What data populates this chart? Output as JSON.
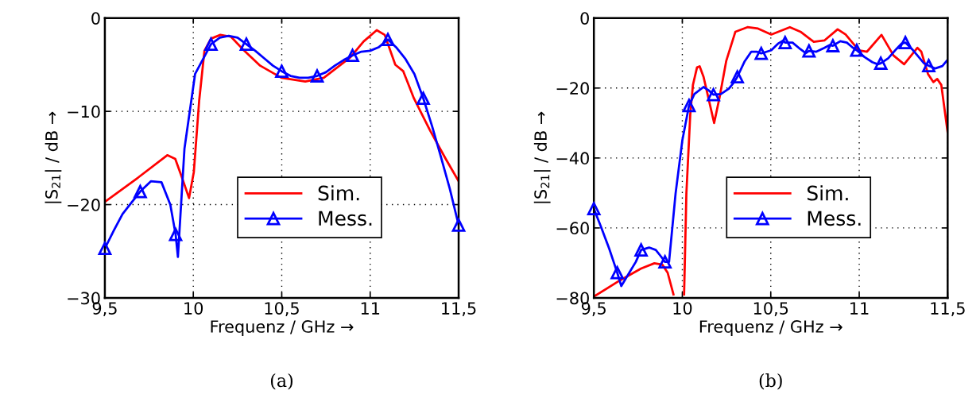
{
  "chart_data": [
    {
      "type": "line",
      "xlabel": "Frequenz / GHz →",
      "ylabel": "|S$_{21}$| / dB →",
      "annotations": [
        "(a)"
      ],
      "xlim": [
        9.5,
        11.5
      ],
      "ylim": [
        -30,
        0
      ],
      "xticks": [
        {
          "value": 9.5,
          "label": "9,5"
        },
        10,
        {
          "value": 10.5,
          "label": "10,5"
        },
        11,
        {
          "value": 11.5,
          "label": "11,5"
        }
      ],
      "yticks": [
        {
          "value": -30,
          "label": "−30"
        },
        {
          "value": -20,
          "label": "−20"
        },
        {
          "value": -10,
          "label": "−10"
        },
        0
      ],
      "grid": true,
      "legend": "bottom right",
      "line_style": "solid",
      "series": [
        {
          "name": "Sim.",
          "color": "#ff0000",
          "marker": "none",
          "x": [
            9.5,
            9.688,
            9.853,
            9.898,
            9.936,
            9.976,
            10.003,
            10.033,
            10.063,
            10.1,
            10.153,
            10.213,
            10.288,
            10.378,
            10.498,
            10.633,
            10.738,
            10.888,
            10.963,
            11.037,
            11.082,
            11.142,
            11.187,
            11.247,
            11.337,
            11.427,
            11.5
          ],
          "values": [
            -19.7,
            -17.1,
            -14.7,
            -15.1,
            -17.1,
            -19.3,
            -16.5,
            -8.9,
            -3.5,
            -2.2,
            -1.8,
            -2.0,
            -3.5,
            -5.1,
            -6.4,
            -6.8,
            -6.4,
            -4.2,
            -2.5,
            -1.3,
            -1.8,
            -5.0,
            -5.7,
            -8.6,
            -12.0,
            -15.1,
            -17.5
          ]
        },
        {
          "type": "scatter",
          "color": "#0000ff",
          "marker": "triangle",
          "x": [
            9.5,
            9.7,
            9.9,
            10.1,
            10.3,
            10.5,
            10.7,
            10.9,
            11.1,
            11.3,
            11.5
          ],
          "values": [
            -24.7,
            -18.6,
            -23.2,
            -2.8,
            -2.8,
            -5.7,
            -6.2,
            -4.0,
            -2.3,
            -8.6,
            -22.2
          ]
        },
        {
          "name": "Mess.",
          "color": "#0000ff",
          "marker": "none",
          "x": [
            9.5,
            9.55,
            9.6,
            9.65,
            9.7,
            9.76,
            9.82,
            9.87,
            9.9,
            9.913,
            9.95,
            10.01,
            10.1,
            10.15,
            10.2,
            10.25,
            10.3,
            10.35,
            10.4,
            10.45,
            10.5,
            10.55,
            10.6,
            10.65,
            10.7,
            10.75,
            10.8,
            10.85,
            10.9,
            10.95,
            11.0,
            11.05,
            11.1,
            11.15,
            11.2,
            11.25,
            11.3,
            11.35,
            11.4,
            11.45,
            11.5
          ],
          "values": [
            -24.7,
            -22.8,
            -21.0,
            -19.8,
            -18.6,
            -17.5,
            -17.6,
            -20.0,
            -23.2,
            -25.6,
            -14.0,
            -6.0,
            -2.8,
            -2.1,
            -1.9,
            -2.1,
            -2.8,
            -3.5,
            -4.3,
            -5.1,
            -5.7,
            -6.2,
            -6.4,
            -6.4,
            -6.2,
            -5.8,
            -5.1,
            -4.5,
            -4.0,
            -3.6,
            -3.5,
            -3.1,
            -2.3,
            -3.2,
            -4.4,
            -6.0,
            -8.6,
            -11.6,
            -14.9,
            -18.3,
            -22.2
          ]
        }
      ]
    },
    {
      "type": "line",
      "xlabel": "Frequenz / GHz →",
      "ylabel": "|S$_{21}$| / dB →",
      "annotations": [
        "(b)"
      ],
      "xlim": [
        9.5,
        11.5
      ],
      "ylim": [
        -80,
        0
      ],
      "xticks": [
        {
          "value": 9.5,
          "label": "9,5"
        },
        10,
        {
          "value": 10.5,
          "label": "10,5"
        },
        11,
        {
          "value": 11.5,
          "label": "11,5"
        }
      ],
      "yticks": [
        {
          "value": -80,
          "label": "−80"
        },
        {
          "value": -60,
          "label": "−60"
        },
        {
          "value": -40,
          "label": "−40"
        },
        {
          "value": -20,
          "label": "−20"
        },
        0
      ],
      "grid": true,
      "legend": "bottom right",
      "line_style": "solid",
      "series": [
        {
          "name": "Sim.",
          "color": "#ff0000",
          "marker": "none",
          "x": [
            9.5,
            9.647,
            9.767,
            9.842,
            9.887,
            9.917,
            9.95,
            9.98,
            10.01,
            10.023,
            10.045,
            10.06,
            10.083,
            10.098,
            10.12,
            10.18,
            10.21,
            10.248,
            10.3,
            10.368,
            10.428,
            10.503,
            10.608,
            10.668,
            10.743,
            10.803,
            10.878,
            10.923,
            10.998,
            11.044,
            11.126,
            11.194,
            11.254,
            11.329,
            11.351,
            11.389,
            11.419,
            11.441,
            11.464,
            11.5
          ],
          "values": [
            -79.6,
            -75.0,
            -71.6,
            -70.1,
            -70.5,
            -72.8,
            -79,
            null,
            -79,
            -50.1,
            -27.4,
            -19.1,
            -14.1,
            -13.8,
            -16.8,
            -30.0,
            -22.8,
            -12.3,
            -3.9,
            -2.6,
            -3.0,
            -4.7,
            -2.6,
            -3.9,
            -6.8,
            -6.4,
            -3.2,
            -4.7,
            -9.2,
            -9.6,
            -4.8,
            -10.7,
            -13.2,
            -8.5,
            -9.6,
            -16.0,
            -18.3,
            -17.4,
            -19.1,
            -32.7
          ]
        },
        {
          "type": "scatter",
          "color": "#0000ff",
          "marker": "triangle",
          "x": [
            9.5,
            9.632,
            9.767,
            9.902,
            10.038,
            10.176,
            10.311,
            10.446,
            10.581,
            10.716,
            10.851,
            10.986,
            11.122,
            11.261,
            11.393
          ],
          "values": [
            -54.5,
            -72.8,
            -66.3,
            -69.7,
            -25.0,
            -21.9,
            -16.8,
            -10.1,
            -7.0,
            -9.4,
            -7.9,
            -9.2,
            -12.9,
            -7.0,
            -13.6
          ]
        },
        {
          "name": "Mess.",
          "color": "#0000ff",
          "marker": "none",
          "x": [
            9.5,
            9.542,
            9.587,
            9.617,
            9.632,
            9.655,
            9.692,
            9.737,
            9.767,
            9.812,
            9.85,
            9.88,
            9.902,
            9.925,
            9.962,
            10.0,
            10.038,
            10.068,
            10.12,
            10.15,
            10.176,
            10.218,
            10.263,
            10.293,
            10.311,
            10.353,
            10.39,
            10.42,
            10.446,
            10.503,
            10.541,
            10.571,
            10.581,
            10.623,
            10.668,
            10.698,
            10.716,
            10.758,
            10.803,
            10.833,
            10.851,
            10.893,
            10.93,
            10.96,
            10.986,
            11.029,
            11.074,
            11.104,
            11.122,
            11.164,
            11.209,
            11.239,
            11.261,
            11.299,
            11.336,
            11.366,
            11.393,
            11.43,
            11.47,
            11.5
          ],
          "values": [
            -54.5,
            -59.9,
            -66.0,
            -70.5,
            -72.8,
            -76.6,
            -73.5,
            -69.7,
            -66.3,
            -65.6,
            -66.3,
            -68.2,
            -69.7,
            -69.7,
            -50.1,
            -35.0,
            -25.0,
            -21.7,
            -19.7,
            -20.7,
            -21.9,
            -21.7,
            -20.2,
            -18.3,
            -16.8,
            -12.3,
            -9.6,
            -9.6,
            -10.1,
            -9.2,
            -7.3,
            -6.4,
            -7.0,
            -7.0,
            -8.9,
            -10.0,
            -9.4,
            -9.6,
            -8.5,
            -7.7,
            -7.9,
            -6.6,
            -7.0,
            -8.3,
            -9.2,
            -11.1,
            -12.6,
            -13.2,
            -12.9,
            -11.5,
            -8.9,
            -7.3,
            -7.0,
            -8.9,
            -11.1,
            -12.9,
            -13.6,
            -14.4,
            -13.7,
            -11.9
          ]
        }
      ]
    }
  ]
}
